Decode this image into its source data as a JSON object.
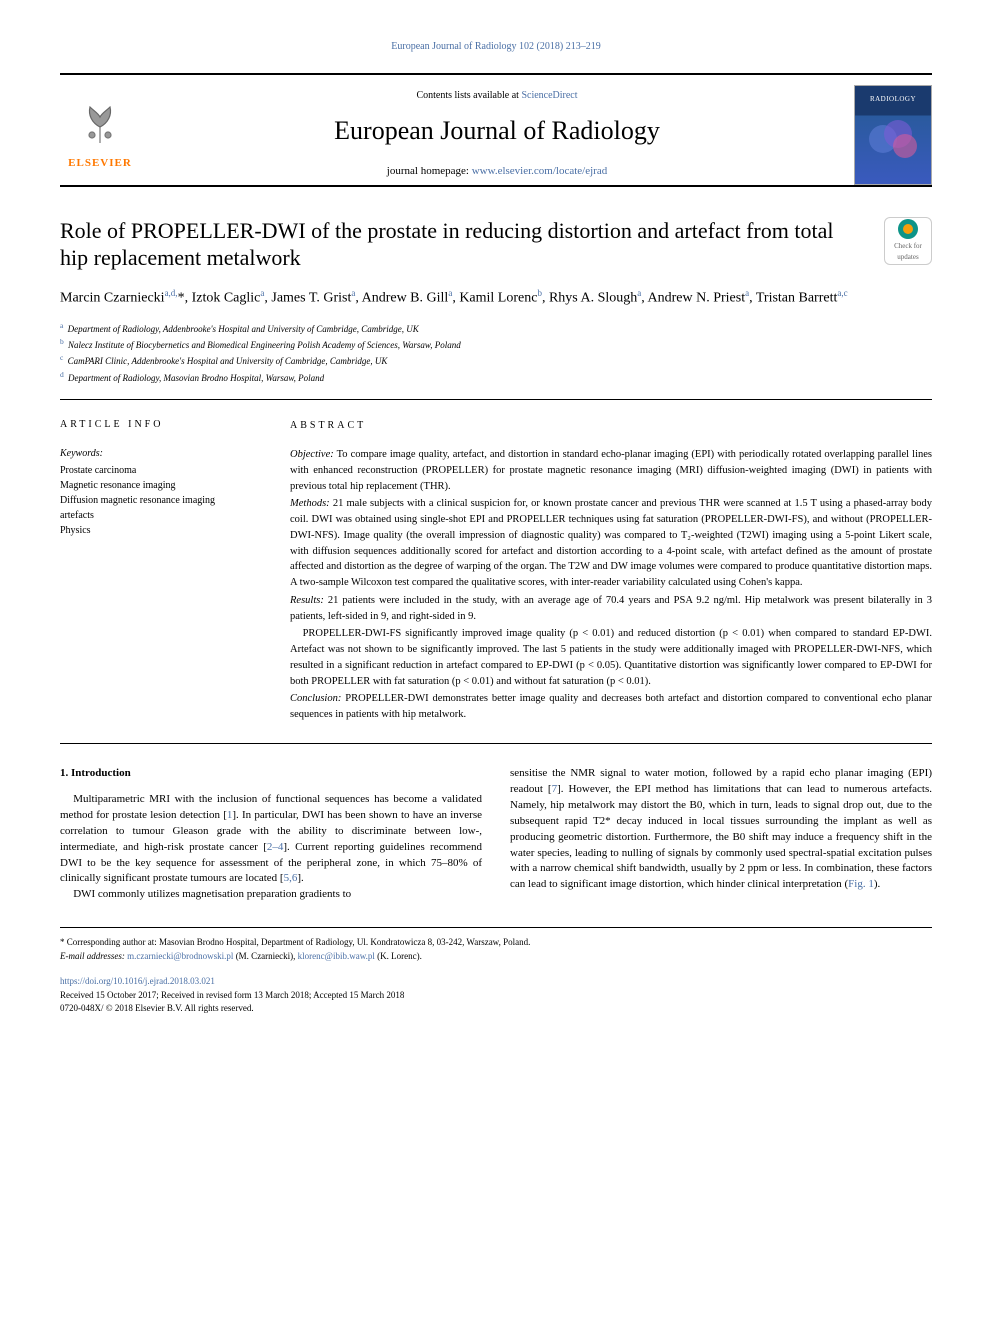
{
  "header": {
    "top_link_text": "European Journal of Radiology 102 (2018) 213–219",
    "contents_text": "Contents lists available at ",
    "contents_link": "ScienceDirect",
    "journal_name": "European Journal of Radiology",
    "homepage_label": "journal homepage: ",
    "homepage_url": "www.elsevier.com/locate/ejrad",
    "elsevier_text": "ELSEVIER",
    "cover_text": "RADIOLOGY"
  },
  "check_updates": {
    "line1": "Check for",
    "line2": "updates"
  },
  "title": "Role of PROPELLER-DWI of the prostate in reducing distortion and artefact from total hip replacement metalwork",
  "authors_html": "Marcin Czarniecki<sup>a,d,</sup>*, Iztok Caglic<sup>a</sup>, James T. Grist<sup>a</sup>, Andrew B. Gill<sup>a</sup>, Kamil Lorenc<sup>b</sup>, Rhys A. Slough<sup>a</sup>, Andrew N. Priest<sup>a</sup>, Tristan Barrett<sup>a,c</sup>",
  "affiliations": [
    {
      "sup": "a",
      "text": "Department of Radiology, Addenbrooke's Hospital and University of Cambridge, Cambridge, UK"
    },
    {
      "sup": "b",
      "text": "Nalecz Institute of Biocybernetics and Biomedical Engineering Polish Academy of Sciences, Warsaw, Poland"
    },
    {
      "sup": "c",
      "text": "CamPARI Clinic, Addenbrooke's Hospital and University of Cambridge, Cambridge, UK"
    },
    {
      "sup": "d",
      "text": "Department of Radiology, Masovian Brodno Hospital, Warsaw, Poland"
    }
  ],
  "article_info": {
    "heading": "ARTICLE INFO",
    "keywords_label": "Keywords:",
    "keywords": [
      "Prostate carcinoma",
      "Magnetic resonance imaging",
      "Diffusion magnetic resonance imaging",
      "artefacts",
      "Physics"
    ]
  },
  "abstract": {
    "heading": "ABSTRACT",
    "objective_label": "Objective:",
    "objective": " To compare image quality, artefact, and distortion in standard echo-planar imaging (EPI) with periodically rotated overlapping parallel lines with enhanced reconstruction (PROPELLER) for prostate magnetic resonance imaging (MRI) diffusion-weighted imaging (DWI) in patients with previous total hip replacement (THR).",
    "methods_label": "Methods:",
    "methods": " 21 male subjects with a clinical suspicion for, or known prostate cancer and previous THR were scanned at 1.5 T using a phased-array body coil. DWI was obtained using single-shot EPI and PROPELLER techniques using fat saturation (PROPELLER-DWI-FS), and without (PROPELLER-DWI-NFS). Image quality (the overall impression of diagnostic quality) was compared to T₂-weighted (T2WI) imaging using a 5-point Likert scale, with diffusion sequences additionally scored for artefact and distortion according to a 4-point scale, with artefact defined as the amount of prostate affected and distortion as the degree of warping of the organ. The T2W and DW image volumes were compared to produce quantitative distortion maps. A two-sample Wilcoxon test compared the qualitative scores, with inter-reader variability calculated using Cohen's kappa.",
    "results_label": "Results:",
    "results1": " 21 patients were included in the study, with an average age of 70.4 years and PSA 9.2 ng/ml. Hip metalwork was present bilaterally in 3 patients, left-sided in 9, and right-sided in 9.",
    "results2": "PROPELLER-DWI-FS significantly improved image quality (p < 0.01) and reduced distortion (p < 0.01) when compared to standard EP-DWI. Artefact was not shown to be significantly improved. The last 5 patients in the study were additionally imaged with PROPELLER-DWI-NFS, which resulted in a significant reduction in artefact compared to EP-DWI (p < 0.05). Quantitative distortion was significantly lower compared to EP-DWI for both PROPELLER with fat saturation (p < 0.01) and without fat saturation (p < 0.01).",
    "conclusion_label": "Conclusion:",
    "conclusion": " PROPELLER-DWI demonstrates better image quality and decreases both artefact and distortion compared to conventional echo planar sequences in patients with hip metalwork."
  },
  "introduction": {
    "heading": "1. Introduction",
    "p1_a": "Multiparametric MRI with the inclusion of functional sequences has become a validated method for prostate lesion detection [",
    "p1_ref1": "1",
    "p1_b": "]. In particular, DWI has been shown to have an inverse correlation to tumour Gleason grade with the ability to discriminate between low-, intermediate, and high-risk prostate cancer [",
    "p1_ref2": "2–4",
    "p1_c": "]. Current reporting guidelines recommend DWI to be the key sequence for assessment of the peripheral zone, in which 75–80% of clinically significant prostate tumours are located [",
    "p1_ref3": "5,6",
    "p1_d": "].",
    "p2": "DWI commonly utilizes magnetisation preparation gradients to",
    "p3_a": "sensitise the NMR signal to water motion, followed by a rapid echo planar imaging (EPI) readout [",
    "p3_ref": "7",
    "p3_b": "]. However, the EPI method has limitations that can lead to numerous artefacts. Namely, hip metalwork may distort the B0, which in turn, leads to signal drop out, due to the subsequent rapid T2* decay induced in local tissues surrounding the implant as well as producing geometric distortion. Furthermore, the B0 shift may induce a frequency shift in the water species, leading to nulling of signals by commonly used spectral-spatial excitation pulses with a narrow chemical shift bandwidth, usually by 2 ppm or less. In combination, these factors can lead to significant image distortion, which hinder clinical interpretation (",
    "p3_fig": "Fig. 1",
    "p3_c": ")."
  },
  "footnotes": {
    "corresponding": "* Corresponding author at: Masovian Brodno Hospital, Department of Radiology, Ul. Kondratowicza 8, 03-242, Warszaw, Poland.",
    "email_label": "E-mail addresses: ",
    "email1": "m.czarniecki@brodnowski.pl",
    "email1_name": " (M. Czarniecki), ",
    "email2": "klorenc@ibib.waw.pl",
    "email2_name": " (K. Lorenc)."
  },
  "footer": {
    "doi": "https://doi.org/10.1016/j.ejrad.2018.03.021",
    "received": "Received 15 October 2017; Received in revised form 13 March 2018; Accepted 15 March 2018",
    "copyright": "0720-048X/ © 2018 Elsevier B.V. All rights reserved."
  },
  "colors": {
    "link": "#4a6fa5",
    "elsevier_orange": "#ff7800",
    "cover_top": "#1a3a6e",
    "cover_bottom": "#3a5abe"
  }
}
